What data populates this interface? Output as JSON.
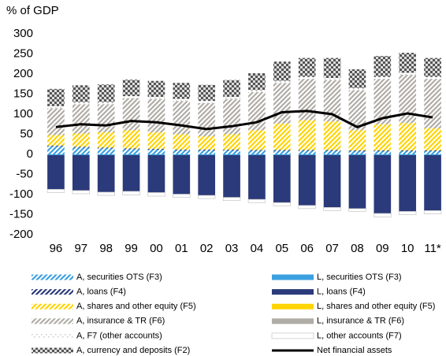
{
  "chart_data": {
    "type": "bar",
    "title": "% of GDP",
    "categories": [
      "96",
      "97",
      "98",
      "99",
      "00",
      "01",
      "02",
      "03",
      "04",
      "05",
      "06",
      "07",
      "08",
      "09",
      "10",
      "11*"
    ],
    "ylim": [
      -200,
      300
    ],
    "yticks": [
      -200,
      -150,
      -100,
      -50,
      0,
      50,
      100,
      150,
      200,
      250,
      300
    ],
    "series": [
      {
        "name": "A, securities OTS (F3)",
        "color": "#3ca0e0",
        "pattern": "diagonal",
        "values": [
          20,
          17,
          15,
          13,
          12,
          10,
          10,
          10,
          9,
          9,
          9,
          9,
          8,
          8,
          8,
          8
        ]
      },
      {
        "name": "L, securities OTS (F3)",
        "color": "#3ca0e0",
        "pattern": "solid",
        "values": [
          -2,
          -2,
          -2,
          -2,
          -2,
          -2,
          -2,
          -2,
          -2,
          -2,
          -2,
          -2,
          -2,
          -2,
          -2,
          -2
        ]
      },
      {
        "name": "A, loans (F4)",
        "color": "#2b3a7a",
        "pattern": "diagonal",
        "values": [
          2,
          2,
          2,
          2,
          2,
          2,
          2,
          2,
          2,
          2,
          2,
          2,
          2,
          2,
          2,
          2
        ]
      },
      {
        "name": "L, loans (F4)",
        "color": "#2b3a7a",
        "pattern": "solid",
        "values": [
          -85,
          -88,
          -92,
          -90,
          -93,
          -97,
          -100,
          -105,
          -110,
          -118,
          -125,
          -130,
          -133,
          -145,
          -140,
          -138
        ]
      },
      {
        "name": "A, shares and other equity (F5)",
        "color": "#ffd400",
        "pattern": "diagonal",
        "values": [
          26,
          33,
          38,
          45,
          41,
          38,
          33,
          38,
          49,
          66,
          74,
          71,
          50,
          65,
          68,
          55
        ]
      },
      {
        "name": "L, shares and other equity (F5)",
        "color": "#ffd400",
        "pattern": "solid",
        "values": [
          0,
          0,
          0,
          0,
          0,
          0,
          0,
          0,
          0,
          0,
          0,
          0,
          0,
          0,
          0,
          0
        ]
      },
      {
        "name": "A, insurance & TR (F6)",
        "color": "#b0aca6",
        "pattern": "diagonal",
        "values": [
          67,
          73,
          70,
          80,
          83,
          83,
          83,
          88,
          95,
          101,
          103,
          103,
          100,
          113,
          120,
          123
        ]
      },
      {
        "name": "L, insurance & TR (F6)",
        "color": "#b0aca6",
        "pattern": "solid",
        "values": [
          0,
          0,
          0,
          0,
          0,
          0,
          0,
          0,
          0,
          0,
          0,
          0,
          0,
          0,
          0,
          0
        ]
      },
      {
        "name": "A, F7 (other accounts)",
        "color": "#c8c8c8",
        "pattern": "dots",
        "values": [
          5,
          5,
          5,
          5,
          5,
          5,
          5,
          5,
          5,
          5,
          5,
          5,
          5,
          5,
          5,
          5
        ]
      },
      {
        "name": "L, other accounts (F7)",
        "color": "#ffffff",
        "pattern": "solid",
        "values": [
          -8,
          -8,
          -8,
          -9,
          -9,
          -8,
          -8,
          -8,
          -8,
          -8,
          -8,
          -8,
          -7,
          -9,
          -8,
          -8
        ]
      },
      {
        "name": "A, currency and deposits (F2)",
        "color": "#555555",
        "pattern": "checker",
        "values": [
          43,
          42,
          44,
          41,
          40,
          40,
          40,
          42,
          42,
          48,
          47,
          50,
          47,
          52,
          50,
          47
        ]
      },
      {
        "name": "Net financial assets",
        "color": "#000000",
        "type": "line",
        "values": [
          68,
          75,
          72,
          83,
          80,
          72,
          63,
          70,
          80,
          105,
          108,
          100,
          68,
          90,
          102,
          92
        ]
      }
    ]
  }
}
